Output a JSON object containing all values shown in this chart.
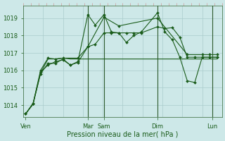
{
  "bg_color": "#cde8e8",
  "grid_color": "#aacccc",
  "line_color": "#1a5c1a",
  "marker_color": "#1a5c1a",
  "tick_color": "#cc9999",
  "xlabel": "Pression niveau de la mer( hPa )",
  "ylim": [
    1013.3,
    1019.7
  ],
  "yticks": [
    1014,
    1015,
    1016,
    1017,
    1018,
    1019
  ],
  "xlim": [
    0,
    160
  ],
  "day_positions": [
    2,
    52,
    65,
    108,
    152
  ],
  "day_labels": [
    "Ven",
    "Mar",
    "Sam",
    "Dim",
    "Lun"
  ],
  "series": [
    {
      "x": [
        2,
        8,
        14,
        20,
        26,
        32,
        38,
        44,
        52,
        58,
        65,
        71,
        77,
        83,
        89,
        95,
        108,
        114,
        120,
        126,
        132,
        138,
        144,
        150,
        156
      ],
      "y": [
        1013.5,
        1014.1,
        1015.9,
        1016.3,
        1016.5,
        1016.6,
        1016.3,
        1016.5,
        1019.2,
        1018.6,
        1019.2,
        1018.2,
        1018.15,
        1017.6,
        1018.0,
        1018.2,
        1019.3,
        1018.2,
        1017.75,
        1016.75,
        1015.4,
        1015.3,
        1016.75,
        1016.75,
        1016.75
      ],
      "marker": true
    },
    {
      "x": [
        2,
        8,
        14,
        20,
        26,
        32,
        38,
        44,
        52,
        58,
        65,
        71,
        77,
        83,
        89,
        95,
        108,
        114,
        120,
        126,
        132,
        138,
        144,
        150,
        156
      ],
      "y": [
        1013.5,
        1014.1,
        1015.8,
        1016.4,
        1016.4,
        1016.65,
        1016.3,
        1016.45,
        1017.35,
        1017.5,
        1018.15,
        1018.15,
        1018.15,
        1018.15,
        1018.15,
        1018.15,
        1018.5,
        1018.4,
        1018.45,
        1017.9,
        1016.75,
        1016.75,
        1016.75,
        1016.75,
        1016.75
      ],
      "marker": true
    },
    {
      "x": [
        2,
        8,
        14,
        20,
        26,
        32,
        38,
        44,
        52,
        65,
        108,
        156
      ],
      "y": [
        1013.5,
        1014.05,
        1015.85,
        1016.65,
        1016.65,
        1016.7,
        1016.65,
        1016.65,
        1016.65,
        1016.65,
        1016.65,
        1016.65
      ],
      "marker": false
    },
    {
      "x": [
        2,
        8,
        14,
        20,
        26,
        32,
        44,
        52,
        65,
        77,
        108,
        132,
        144,
        150,
        156
      ],
      "y": [
        1013.5,
        1014.1,
        1016.0,
        1016.7,
        1016.65,
        1016.7,
        1016.7,
        1017.35,
        1019.05,
        1018.55,
        1019.0,
        1016.9,
        1016.9,
        1016.9,
        1016.9
      ],
      "marker": true
    }
  ]
}
